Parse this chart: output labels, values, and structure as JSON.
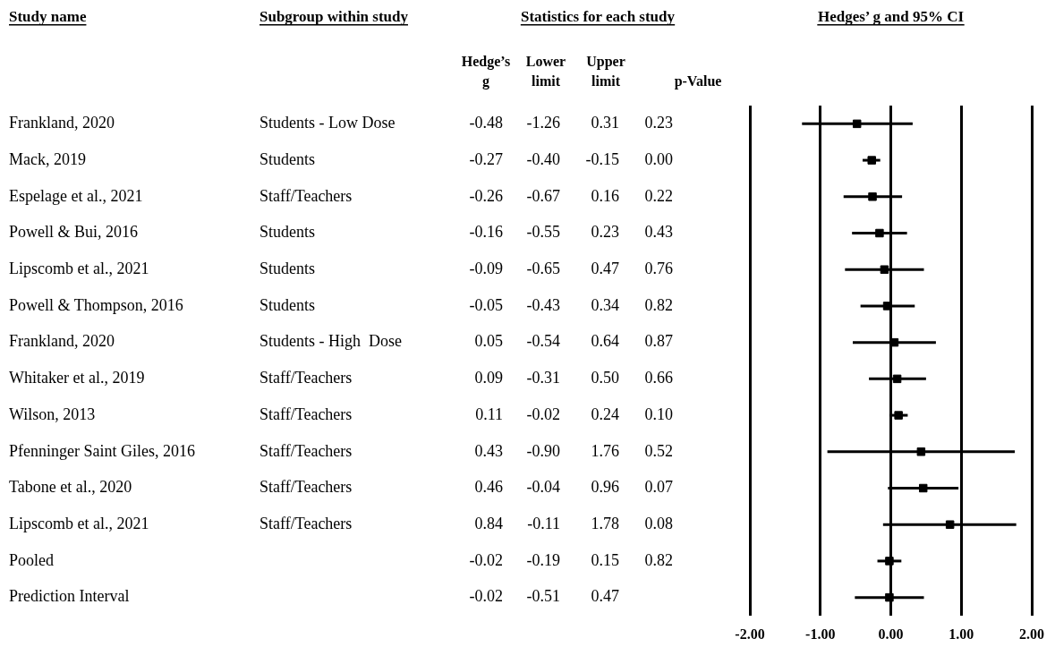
{
  "chart_data": {
    "type": "scatter",
    "orientation": "horizontal",
    "title": "Hedges’ g and 95% CI",
    "categories": [
      null,
      null,
      null,
      null,
      null,
      null,
      null,
      null,
      null,
      null,
      null,
      null,
      null,
      null
    ],
    "values": [
      -0.48,
      -0.27,
      -0.26,
      -0.16,
      -0.09,
      -0.05,
      0.05,
      0.09,
      0.11,
      0.43,
      0.46,
      0.84,
      -0.02,
      -0.02
    ],
    "errors": [
      [
        -1.26,
        0.31
      ],
      [
        -0.4,
        -0.15
      ],
      [
        -0.67,
        0.16
      ],
      [
        -0.55,
        0.23
      ],
      [
        -0.65,
        0.47
      ],
      [
        -0.43,
        0.34
      ],
      [
        -0.54,
        0.64
      ],
      [
        -0.31,
        0.5
      ],
      [
        -0.02,
        0.24
      ],
      [
        -0.9,
        1.76
      ],
      [
        -0.04,
        0.96
      ],
      [
        -0.11,
        1.78
      ],
      [
        -0.19,
        0.15
      ],
      [
        -0.51,
        0.47
      ]
    ],
    "color": "#000000",
    "marker": "square",
    "data_labels": true,
    "xlim": [
      -2,
      2
    ],
    "xticks": [
      {
        "value": -2,
        "label": "-2.00"
      },
      {
        "value": -1,
        "label": "-1.00"
      },
      {
        "value": 0,
        "label": "0.00"
      },
      {
        "value": 1,
        "label": "1.00"
      },
      {
        "value": 2,
        "label": "2.00"
      }
    ],
    "grid": "x",
    "annotations": [
      "Study name",
      "Subgroup within study",
      "Statistics for each study",
      "Hedge’s g",
      "Lower limit",
      "Upper limit",
      "p-Value",
      "Students - Low Dose",
      "Students",
      "Staff/Teachers",
      "Students",
      "Students",
      "Students",
      "Students - High  Dose",
      "Staff/Teachers",
      "Staff/Teachers",
      "Staff/Teachers",
      "Staff/Teachers",
      "Staff/Teachers",
      "0.23",
      "0.00",
      "0.22",
      "0.43",
      "0.76",
      "0.82",
      "0.87",
      "0.66",
      "0.10",
      "0.52",
      "0.07",
      "0.08",
      "0.82",
      "-1.26",
      "-0.40",
      "-0.67",
      "-0.55",
      "-0.65",
      "-0.43",
      "-0.54",
      "-0.31",
      "-0.02",
      "-0.90",
      "-0.04",
      "-0.11",
      "-0.19",
      "-0.51",
      "0.31",
      "-0.15",
      "0.16",
      "0.23",
      "0.47",
      "0.34",
      "0.64",
      "0.50",
      "0.24",
      "1.76",
      "0.96",
      "1.78",
      "0.15",
      "0.47",
      "Frankland, 2020",
      "Mack, 2019",
      "Espelage et al., 2021",
      "Powell & Bui, 2016",
      "Lipscomb et al., 2021",
      "Powell & Thompson, 2016",
      "Frankland, 2020",
      "Whitaker et al., 2019",
      "Wilson, 2013",
      "Pfenninger Saint Giles, 2016",
      "Tabone et al., 2020",
      "Lipscomb et al., 2021",
      "Pooled",
      "Prediction Interval"
    ]
  }
}
